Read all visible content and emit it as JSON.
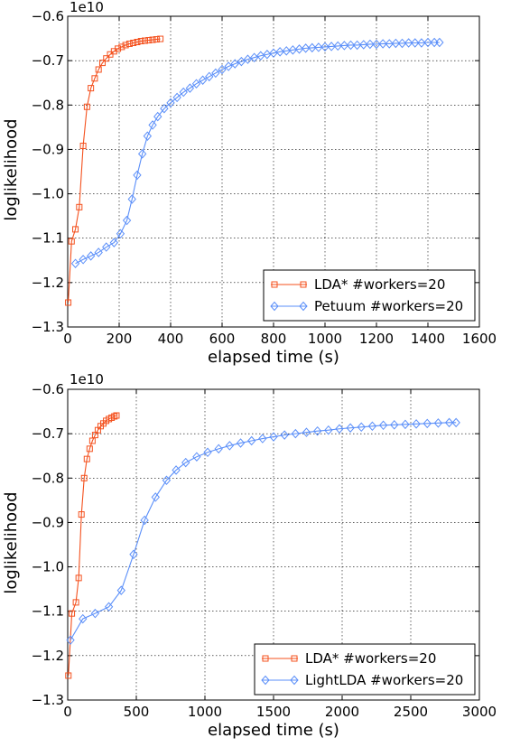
{
  "chart_data": [
    {
      "type": "line",
      "xlabel": "elapsed time (s)",
      "ylabel": "loglikelihood",
      "y_offset_label": "1e10",
      "xlim": [
        0,
        1600
      ],
      "ylim": [
        -1.3,
        -0.6
      ],
      "xticks": [
        "0",
        "200",
        "400",
        "600",
        "800",
        "1000",
        "1200",
        "1400",
        "1600"
      ],
      "yticks": [
        "−1.3",
        "−1.2",
        "−1.1",
        "−1.0",
        "−0.9",
        "−0.8",
        "−0.7",
        "−0.6"
      ],
      "grid": true,
      "legend_position": "lower-right",
      "series": [
        {
          "name": "LDA* #workers=20",
          "color": "#f4511e",
          "marker": "square",
          "x": [
            2,
            15,
            30,
            45,
            60,
            75,
            90,
            105,
            120,
            135,
            150,
            165,
            180,
            195,
            210,
            225,
            240,
            255,
            270,
            285,
            300,
            315,
            330,
            345,
            360
          ],
          "y": [
            -1.245,
            -1.107,
            -1.08,
            -1.03,
            -0.892,
            -0.804,
            -0.762,
            -0.74,
            -0.72,
            -0.705,
            -0.695,
            -0.686,
            -0.679,
            -0.673,
            -0.669,
            -0.665,
            -0.662,
            -0.66,
            -0.658,
            -0.656,
            -0.655,
            -0.654,
            -0.653,
            -0.652,
            -0.651
          ]
        },
        {
          "name": "Petuum #workers=20",
          "color": "#5b8ff9",
          "marker": "diamond",
          "x": [
            30,
            60,
            90,
            120,
            150,
            180,
            205,
            230,
            250,
            270,
            290,
            310,
            330,
            350,
            375,
            400,
            425,
            450,
            475,
            500,
            525,
            550,
            575,
            600,
            625,
            650,
            675,
            700,
            725,
            750,
            775,
            800,
            825,
            850,
            875,
            900,
            925,
            950,
            975,
            1000,
            1025,
            1050,
            1075,
            1100,
            1125,
            1150,
            1175,
            1200,
            1225,
            1250,
            1275,
            1300,
            1325,
            1350,
            1375,
            1400,
            1425,
            1445
          ],
          "y": [
            -1.157,
            -1.148,
            -1.14,
            -1.132,
            -1.12,
            -1.11,
            -1.09,
            -1.06,
            -1.012,
            -0.958,
            -0.91,
            -0.87,
            -0.845,
            -0.826,
            -0.808,
            -0.795,
            -0.783,
            -0.771,
            -0.762,
            -0.752,
            -0.744,
            -0.736,
            -0.728,
            -0.72,
            -0.713,
            -0.707,
            -0.702,
            -0.697,
            -0.693,
            -0.689,
            -0.686,
            -0.683,
            -0.68,
            -0.678,
            -0.676,
            -0.674,
            -0.672,
            -0.671,
            -0.67,
            -0.669,
            -0.668,
            -0.667,
            -0.666,
            -0.665,
            -0.665,
            -0.664,
            -0.663,
            -0.663,
            -0.662,
            -0.662,
            -0.661,
            -0.661,
            -0.66,
            -0.66,
            -0.66,
            -0.659,
            -0.659,
            -0.659
          ]
        }
      ]
    },
    {
      "type": "line",
      "xlabel": "elapsed time (s)",
      "ylabel": "loglikelihood",
      "y_offset_label": "1e10",
      "xlim": [
        0,
        3000
      ],
      "ylim": [
        -1.3,
        -0.6
      ],
      "xticks": [
        "0",
        "500",
        "1000",
        "1500",
        "2000",
        "2500",
        "3000"
      ],
      "yticks": [
        "−1.3",
        "−1.2",
        "−1.1",
        "−1.0",
        "−0.9",
        "−0.8",
        "−0.7",
        "−0.6"
      ],
      "grid": true,
      "legend_position": "lower-right",
      "series": [
        {
          "name": "LDA* #workers=20",
          "color": "#f4511e",
          "marker": "square",
          "x": [
            5,
            30,
            60,
            80,
            100,
            120,
            140,
            160,
            180,
            200,
            220,
            240,
            260,
            280,
            300,
            320,
            340,
            355
          ],
          "y": [
            -1.245,
            -1.105,
            -1.08,
            -1.025,
            -0.882,
            -0.8,
            -0.757,
            -0.734,
            -0.716,
            -0.703,
            -0.692,
            -0.683,
            -0.677,
            -0.671,
            -0.667,
            -0.664,
            -0.661,
            -0.659
          ]
        },
        {
          "name": "LightLDA #workers=20",
          "color": "#5b8ff9",
          "marker": "diamond",
          "x": [
            20,
            110,
            200,
            300,
            390,
            480,
            560,
            640,
            720,
            790,
            860,
            940,
            1020,
            1100,
            1180,
            1260,
            1340,
            1420,
            1500,
            1580,
            1660,
            1740,
            1820,
            1900,
            1980,
            2060,
            2140,
            2220,
            2300,
            2380,
            2460,
            2540,
            2620,
            2700,
            2780,
            2830
          ],
          "y": [
            -1.165,
            -1.117,
            -1.105,
            -1.09,
            -1.053,
            -0.972,
            -0.895,
            -0.843,
            -0.805,
            -0.782,
            -0.765,
            -0.752,
            -0.742,
            -0.734,
            -0.727,
            -0.721,
            -0.716,
            -0.711,
            -0.707,
            -0.703,
            -0.7,
            -0.697,
            -0.694,
            -0.692,
            -0.689,
            -0.687,
            -0.685,
            -0.683,
            -0.681,
            -0.68,
            -0.679,
            -0.678,
            -0.677,
            -0.676,
            -0.675,
            -0.675
          ]
        }
      ]
    }
  ]
}
